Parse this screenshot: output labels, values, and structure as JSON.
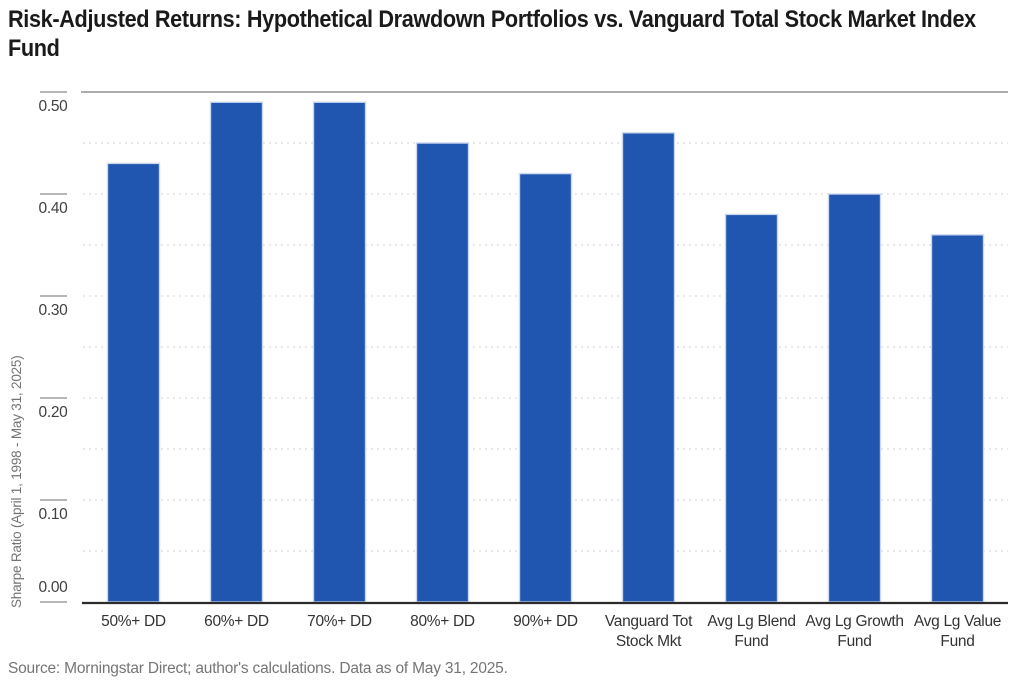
{
  "title": "Risk-Adjusted Returns: Hypothetical Drawdown Portfolios vs. Vanguard Total Stock Market Index Fund",
  "source_note": "Source: Morningstar Direct; author's calculations. Data as of May 31, 2025.",
  "chart_data": {
    "type": "bar",
    "title": "Risk-Adjusted Returns: Hypothetical Drawdown Portfolios vs. Vanguard Total Stock Market Index Fund",
    "xlabel": "",
    "ylabel": "Sharpe Ratio (April 1, 1998 - May 31, 2025)",
    "categories": [
      "50%+ DD",
      "60%+ DD",
      "70%+ DD",
      "80%+ DD",
      "90%+ DD",
      "Vanguard Tot Stock Mkt",
      "Avg Lg Blend Fund",
      "Avg Lg Growth Fund",
      "Avg Lg Value Fund"
    ],
    "category_lines": [
      [
        "50%+ DD"
      ],
      [
        "60%+ DD"
      ],
      [
        "70%+ DD"
      ],
      [
        "80%+ DD"
      ],
      [
        "90%+ DD"
      ],
      [
        "Vanguard Tot",
        "Stock Mkt"
      ],
      [
        "Avg Lg Blend",
        "Fund"
      ],
      [
        "Avg Lg Growth",
        "Fund"
      ],
      [
        "Avg Lg Value",
        "Fund"
      ]
    ],
    "values": [
      0.43,
      0.49,
      0.49,
      0.45,
      0.42,
      0.46,
      0.38,
      0.4,
      0.36
    ],
    "ylim": [
      0,
      0.5
    ],
    "yticks": [
      0,
      0.1,
      0.2,
      0.3,
      0.4,
      0.5
    ],
    "ytick_labels": [
      "0.00",
      "0.10",
      "0.20",
      "0.30",
      "0.40",
      "0.50"
    ],
    "minor_grid_step": 0.05,
    "grid": "horizontal dotted gridlines every 0.05; solid gray line at 0.50; dark baseline at 0.00",
    "legend": "none",
    "bar_color": "#2055b0"
  },
  "colors": {
    "background": "#ffffff",
    "bar": "#2055b0",
    "bar_outline": "#ccd8ee",
    "grid_dotted": "#d9d9d9",
    "top_line": "#909090",
    "baseline": "#2b2b2b",
    "tick": "#8c8c8c",
    "tick_label_text": "#404040",
    "category_text": "#333333",
    "y_axis_title_text": "#737373",
    "title_text": "#1a1a1a",
    "source_text": "#757575"
  }
}
